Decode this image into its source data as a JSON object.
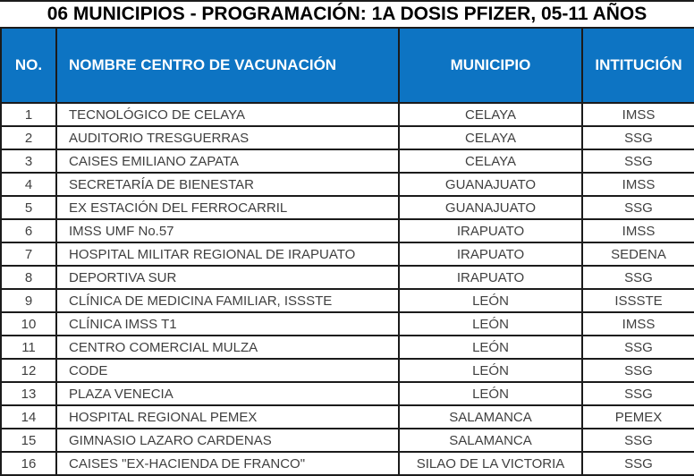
{
  "title": "06 MUNICIPIOS - PROGRAMACIÓN: 1A DOSIS PFIZER, 05-11 AÑOS",
  "table": {
    "columns": [
      "NO.",
      "NOMBRE CENTRO DE VACUNACIÓN",
      "MUNICIPIO",
      "INTITUCIÓN"
    ],
    "rows": [
      {
        "no": "1",
        "centro": "TECNOLÓGICO DE CELAYA",
        "municipio": "CELAYA",
        "institucion": "IMSS"
      },
      {
        "no": "2",
        "centro": "AUDITORIO TRESGUERRAS",
        "municipio": "CELAYA",
        "institucion": "SSG"
      },
      {
        "no": "3",
        "centro": "CAISES EMILIANO ZAPATA",
        "municipio": "CELAYA",
        "institucion": "SSG"
      },
      {
        "no": "4",
        "centro": "SECRETARÍA DE BIENESTAR",
        "municipio": "GUANAJUATO",
        "institucion": "IMSS"
      },
      {
        "no": "5",
        "centro": "EX ESTACIÓN DEL FERROCARRIL",
        "municipio": "GUANAJUATO",
        "institucion": "SSG"
      },
      {
        "no": "6",
        "centro": "IMSS UMF No.57",
        "municipio": "IRAPUATO",
        "institucion": "IMSS"
      },
      {
        "no": "7",
        "centro": "HOSPITAL MILITAR REGIONAL DE IRAPUATO",
        "municipio": "IRAPUATO",
        "institucion": "SEDENA"
      },
      {
        "no": "8",
        "centro": "DEPORTIVA SUR",
        "municipio": "IRAPUATO",
        "institucion": "SSG"
      },
      {
        "no": "9",
        "centro": "CLÍNICA DE MEDICINA FAMILIAR, ISSSTE",
        "municipio": "LEÓN",
        "institucion": "ISSSTE"
      },
      {
        "no": "10",
        "centro": "CLÍNICA IMSS T1",
        "municipio": "LEÓN",
        "institucion": "IMSS"
      },
      {
        "no": "11",
        "centro": "CENTRO COMERCIAL MULZA",
        "municipio": "LEÓN",
        "institucion": "SSG"
      },
      {
        "no": "12",
        "centro": "CODE",
        "municipio": "LEÓN",
        "institucion": "SSG"
      },
      {
        "no": "13",
        "centro": "PLAZA VENECIA",
        "municipio": "LEÓN",
        "institucion": "SSG"
      },
      {
        "no": "14",
        "centro": "HOSPITAL REGIONAL PEMEX",
        "municipio": "SALAMANCA",
        "institucion": "PEMEX"
      },
      {
        "no": "15",
        "centro": "GIMNASIO LAZARO CARDENAS",
        "municipio": "SALAMANCA",
        "institucion": "SSG"
      },
      {
        "no": "16",
        "centro": "CAISES \"EX-HACIENDA DE FRANCO\"",
        "municipio": "SILAO DE LA VICTORIA",
        "institucion": "SSG"
      }
    ]
  },
  "colors": {
    "header_bg": "#0d74c3",
    "header_text": "#ffffff",
    "body_text": "#3f3f3f",
    "border": "#1b1b1b",
    "title_text": "#000000",
    "page_bg": "#ffffff"
  }
}
